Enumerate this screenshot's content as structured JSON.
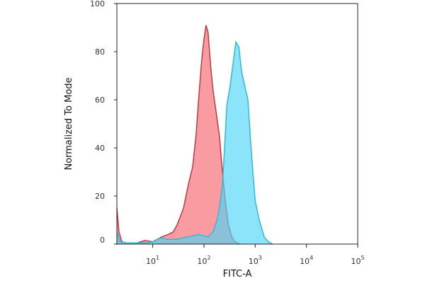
{
  "chart_data": {
    "type": "area",
    "xlabel": "FITC-A",
    "ylabel": "Normalized To Mode",
    "xscale": "log",
    "xlim": [
      2,
      100000
    ],
    "ylim": [
      0,
      100
    ],
    "y_ticks": [
      "0",
      "20",
      "40",
      "60",
      "80",
      "100"
    ],
    "x_ticks": [
      {
        "base": "10",
        "exp": "1",
        "value": 10
      },
      {
        "base": "10",
        "exp": "2",
        "value": 100
      },
      {
        "base": "10",
        "exp": "3",
        "value": 1000
      },
      {
        "base": "10",
        "exp": "4",
        "value": 10000
      },
      {
        "base": "10",
        "exp": "5",
        "value": 100000
      }
    ],
    "grid": false,
    "legend": "none",
    "series": [
      {
        "fill": "#f77b83",
        "stroke": "#c0393f",
        "opacity": 0.75,
        "points": [
          [
            2,
            15
          ],
          [
            2.2,
            5
          ],
          [
            2.5,
            1
          ],
          [
            3,
            0.5
          ],
          [
            5,
            0.5
          ],
          [
            7,
            1.5
          ],
          [
            10,
            1
          ],
          [
            15,
            3
          ],
          [
            20,
            4
          ],
          [
            25,
            5
          ],
          [
            30,
            8
          ],
          [
            40,
            15
          ],
          [
            50,
            25
          ],
          [
            60,
            32
          ],
          [
            70,
            45
          ],
          [
            80,
            62
          ],
          [
            90,
            76
          ],
          [
            100,
            85
          ],
          [
            110,
            91
          ],
          [
            120,
            88
          ],
          [
            135,
            74
          ],
          [
            150,
            64
          ],
          [
            170,
            56
          ],
          [
            200,
            45
          ],
          [
            230,
            30
          ],
          [
            260,
            18
          ],
          [
            300,
            8
          ],
          [
            350,
            3
          ],
          [
            400,
            1
          ],
          [
            500,
            0
          ]
        ]
      },
      {
        "fill": "#4fd6f7",
        "stroke": "#30b9d4",
        "opacity": 0.65,
        "points": [
          [
            2,
            5
          ],
          [
            2.3,
            1
          ],
          [
            3,
            0.5
          ],
          [
            8,
            0.5
          ],
          [
            10,
            1
          ],
          [
            14,
            2.5
          ],
          [
            20,
            2
          ],
          [
            30,
            2
          ],
          [
            50,
            3
          ],
          [
            80,
            4
          ],
          [
            120,
            3
          ],
          [
            150,
            5
          ],
          [
            180,
            10
          ],
          [
            200,
            15
          ],
          [
            230,
            25
          ],
          [
            260,
            45
          ],
          [
            280,
            58
          ],
          [
            320,
            65
          ],
          [
            370,
            75
          ],
          [
            420,
            84
          ],
          [
            480,
            82
          ],
          [
            540,
            72
          ],
          [
            620,
            66
          ],
          [
            720,
            60
          ],
          [
            800,
            45
          ],
          [
            900,
            30
          ],
          [
            1000,
            18
          ],
          [
            1200,
            10
          ],
          [
            1500,
            3
          ],
          [
            1800,
            1
          ],
          [
            2200,
            0
          ]
        ]
      }
    ]
  }
}
